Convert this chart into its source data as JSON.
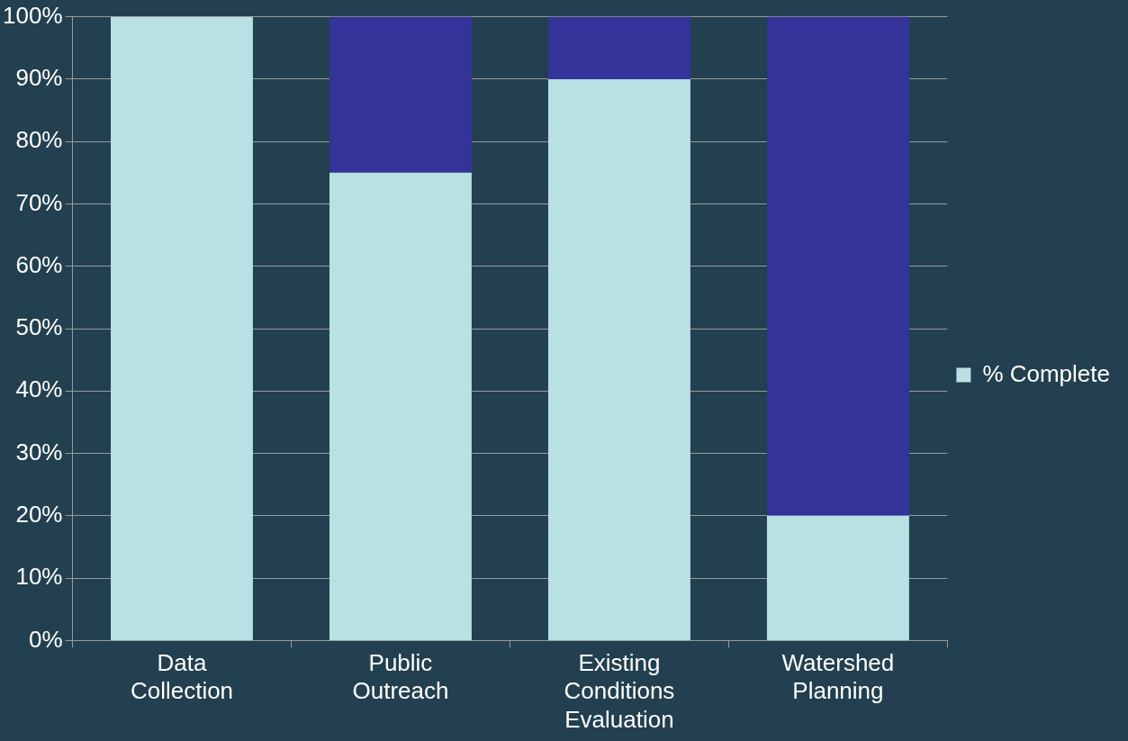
{
  "chart_data": {
    "type": "bar",
    "stacked": true,
    "categories": [
      "Data Collection",
      "Public Outreach",
      "Existing Conditions Evaluation",
      "Watershed Planning"
    ],
    "series": [
      {
        "name": "% Complete",
        "color": "#b9e0e3",
        "values": [
          100,
          75,
          90,
          20
        ]
      },
      {
        "color": "#333399",
        "values": [
          0,
          25,
          10,
          80
        ]
      }
    ],
    "ylim": [
      0,
      100
    ],
    "yticks": [
      {
        "value": 0,
        "label": "0%"
      },
      {
        "value": 10,
        "label": "10%"
      },
      {
        "value": 20,
        "label": "20%"
      },
      {
        "value": 30,
        "label": "30%"
      },
      {
        "value": 40,
        "label": "40%"
      },
      {
        "value": 50,
        "label": "50%"
      },
      {
        "value": 60,
        "label": "60%"
      },
      {
        "value": 70,
        "label": "70%"
      },
      {
        "value": 80,
        "label": "80%"
      },
      {
        "value": 90,
        "label": "90%"
      },
      {
        "value": 100,
        "label": "100%"
      }
    ],
    "grid": "y",
    "legend": "right"
  }
}
